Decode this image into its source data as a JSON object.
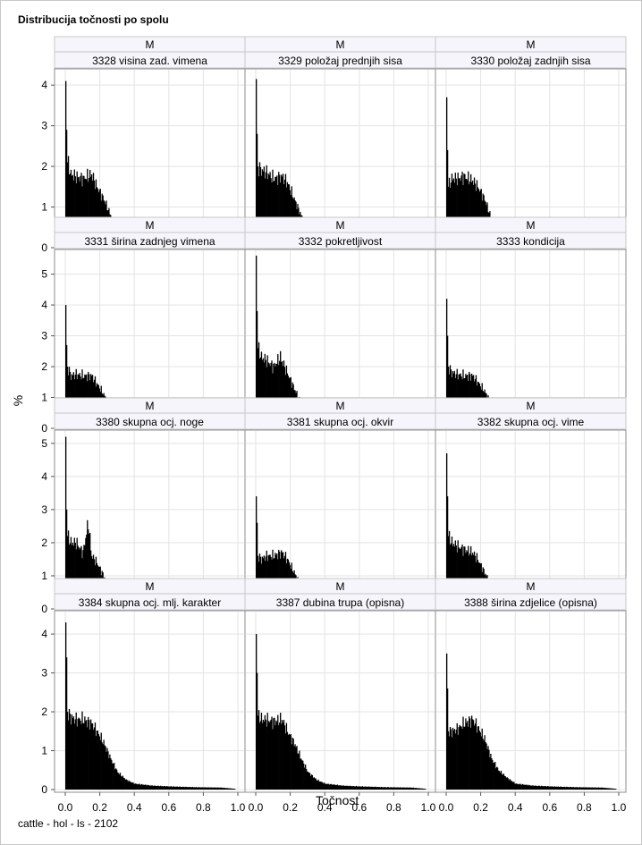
{
  "title": "Distribucija točnosti po spolu",
  "footnote": "cattle - hol - ls - 2102",
  "chart_data": {
    "type": "bar",
    "title": "Distribucija točnosti po spolu",
    "xlabel": "Točnost",
    "ylabel": "%",
    "xlim": [
      0,
      1
    ],
    "x_ticks": [
      "0.0",
      "0.2",
      "0.4",
      "0.6",
      "0.8",
      "1.0"
    ],
    "grid": true,
    "rows": [
      {
        "ylim": [
          0,
          4.4
        ],
        "y_ticks": [
          "0",
          "1",
          "2",
          "3",
          "4"
        ]
      },
      {
        "ylim": [
          0,
          5.8
        ],
        "y_ticks": [
          "0",
          "1",
          "2",
          "3",
          "4",
          "5"
        ]
      },
      {
        "ylim": [
          0,
          5.4
        ],
        "y_ticks": [
          "0",
          "1",
          "2",
          "3",
          "4",
          "5"
        ]
      },
      {
        "ylim": [
          0,
          4.6
        ],
        "y_ticks": [
          "0",
          "1",
          "2",
          "3",
          "4"
        ]
      }
    ],
    "panels": [
      {
        "sex": "M",
        "name": "3328 visina zad. vimena",
        "profile": [
          [
            0.0,
            4.1
          ],
          [
            0.005,
            2.9
          ],
          [
            0.01,
            2.1
          ],
          [
            0.03,
            1.8
          ],
          [
            0.06,
            1.75
          ],
          [
            0.1,
            1.7
          ],
          [
            0.15,
            1.8
          ],
          [
            0.18,
            1.5
          ],
          [
            0.22,
            1.2
          ],
          [
            0.26,
            0.8
          ],
          [
            0.3,
            0.4
          ],
          [
            0.35,
            0.2
          ],
          [
            0.4,
            0.12
          ],
          [
            0.5,
            0.08
          ],
          [
            0.6,
            0.06
          ],
          [
            0.75,
            0.05
          ],
          [
            0.9,
            0.04
          ],
          [
            0.98,
            0.02
          ]
        ]
      },
      {
        "sex": "M",
        "name": "3329 položaj prednjih sisa",
        "profile": [
          [
            0.0,
            4.15
          ],
          [
            0.005,
            2.8
          ],
          [
            0.01,
            2.0
          ],
          [
            0.03,
            1.9
          ],
          [
            0.06,
            1.85
          ],
          [
            0.1,
            1.7
          ],
          [
            0.15,
            1.75
          ],
          [
            0.18,
            1.6
          ],
          [
            0.22,
            1.2
          ],
          [
            0.26,
            0.8
          ],
          [
            0.3,
            0.45
          ],
          [
            0.35,
            0.25
          ],
          [
            0.4,
            0.15
          ],
          [
            0.5,
            0.1
          ],
          [
            0.6,
            0.08
          ],
          [
            0.75,
            0.05
          ],
          [
            0.9,
            0.03
          ],
          [
            0.93,
            0.01
          ]
        ]
      },
      {
        "sex": "M",
        "name": "3330 položaj zadnjih sisa",
        "profile": [
          [
            0.0,
            3.7
          ],
          [
            0.005,
            2.4
          ],
          [
            0.01,
            1.5
          ],
          [
            0.03,
            1.7
          ],
          [
            0.06,
            1.7
          ],
          [
            0.1,
            1.75
          ],
          [
            0.15,
            1.65
          ],
          [
            0.18,
            1.5
          ],
          [
            0.22,
            1.2
          ],
          [
            0.26,
            0.7
          ],
          [
            0.3,
            0.4
          ],
          [
            0.35,
            0.2
          ],
          [
            0.4,
            0.12
          ],
          [
            0.5,
            0.08
          ],
          [
            0.6,
            0.07
          ],
          [
            0.75,
            0.06
          ],
          [
            0.9,
            0.06
          ],
          [
            0.98,
            0.03
          ]
        ]
      },
      {
        "sex": "M",
        "name": "3331 širina zadnjeg vimena",
        "profile": [
          [
            0.0,
            4.0
          ],
          [
            0.005,
            2.7
          ],
          [
            0.01,
            2.0
          ],
          [
            0.03,
            1.7
          ],
          [
            0.06,
            1.75
          ],
          [
            0.1,
            1.7
          ],
          [
            0.15,
            1.7
          ],
          [
            0.18,
            1.45
          ],
          [
            0.22,
            1.1
          ],
          [
            0.26,
            0.7
          ],
          [
            0.3,
            0.35
          ],
          [
            0.35,
            0.2
          ],
          [
            0.4,
            0.12
          ],
          [
            0.5,
            0.08
          ],
          [
            0.6,
            0.07
          ],
          [
            0.75,
            0.06
          ],
          [
            0.9,
            0.05
          ],
          [
            0.98,
            0.02
          ]
        ]
      },
      {
        "sex": "M",
        "name": "3332 pokretljivost",
        "profile": [
          [
            0.0,
            5.6
          ],
          [
            0.005,
            3.8
          ],
          [
            0.01,
            2.6
          ],
          [
            0.03,
            2.3
          ],
          [
            0.06,
            2.2
          ],
          [
            0.1,
            2.0
          ],
          [
            0.14,
            2.3
          ],
          [
            0.18,
            1.8
          ],
          [
            0.22,
            1.3
          ],
          [
            0.26,
            0.8
          ],
          [
            0.3,
            0.45
          ],
          [
            0.35,
            0.25
          ],
          [
            0.4,
            0.12
          ],
          [
            0.5,
            0.08
          ],
          [
            0.6,
            0.07
          ],
          [
            0.75,
            0.05
          ],
          [
            0.9,
            0.04
          ],
          [
            0.98,
            0.02
          ]
        ]
      },
      {
        "sex": "M",
        "name": "3333 kondicija",
        "profile": [
          [
            0.0,
            4.2
          ],
          [
            0.005,
            3.0
          ],
          [
            0.01,
            2.0
          ],
          [
            0.03,
            1.8
          ],
          [
            0.06,
            1.75
          ],
          [
            0.1,
            1.7
          ],
          [
            0.15,
            1.7
          ],
          [
            0.18,
            1.5
          ],
          [
            0.22,
            1.2
          ],
          [
            0.26,
            0.8
          ],
          [
            0.3,
            0.45
          ],
          [
            0.35,
            0.25
          ],
          [
            0.4,
            0.15
          ],
          [
            0.5,
            0.1
          ],
          [
            0.6,
            0.08
          ],
          [
            0.75,
            0.06
          ],
          [
            0.9,
            0.05
          ],
          [
            0.98,
            0.02
          ]
        ]
      },
      {
        "sex": "M",
        "name": "3380 skupna ocj. noge",
        "profile": [
          [
            0.0,
            5.2
          ],
          [
            0.005,
            3.0
          ],
          [
            0.01,
            2.2
          ],
          [
            0.03,
            2.0
          ],
          [
            0.06,
            2.0
          ],
          [
            0.1,
            1.7
          ],
          [
            0.13,
            2.6
          ],
          [
            0.15,
            1.6
          ],
          [
            0.18,
            1.4
          ],
          [
            0.22,
            1.0
          ],
          [
            0.26,
            0.6
          ],
          [
            0.3,
            0.35
          ],
          [
            0.35,
            0.2
          ],
          [
            0.4,
            0.12
          ],
          [
            0.5,
            0.08
          ],
          [
            0.6,
            0.07
          ],
          [
            0.75,
            0.06
          ],
          [
            0.9,
            0.05
          ],
          [
            0.98,
            0.02
          ]
        ]
      },
      {
        "sex": "M",
        "name": "3381 skupna ocj. okvir",
        "profile": [
          [
            0.0,
            3.4
          ],
          [
            0.005,
            2.6
          ],
          [
            0.01,
            1.6
          ],
          [
            0.03,
            1.5
          ],
          [
            0.06,
            1.6
          ],
          [
            0.1,
            1.6
          ],
          [
            0.15,
            1.7
          ],
          [
            0.18,
            1.5
          ],
          [
            0.22,
            1.1
          ],
          [
            0.26,
            0.7
          ],
          [
            0.3,
            0.4
          ],
          [
            0.35,
            0.25
          ],
          [
            0.4,
            0.12
          ],
          [
            0.5,
            0.08
          ],
          [
            0.6,
            0.07
          ],
          [
            0.75,
            0.06
          ],
          [
            0.9,
            0.05
          ],
          [
            0.98,
            0.02
          ]
        ]
      },
      {
        "sex": "M",
        "name": "3382 skupna ocj. vime",
        "profile": [
          [
            0.0,
            4.7
          ],
          [
            0.005,
            3.4
          ],
          [
            0.01,
            2.2
          ],
          [
            0.03,
            2.0
          ],
          [
            0.06,
            1.9
          ],
          [
            0.1,
            1.8
          ],
          [
            0.15,
            1.7
          ],
          [
            0.18,
            1.5
          ],
          [
            0.22,
            1.1
          ],
          [
            0.26,
            0.7
          ],
          [
            0.3,
            0.4
          ],
          [
            0.35,
            0.2
          ],
          [
            0.4,
            0.12
          ],
          [
            0.5,
            0.08
          ],
          [
            0.6,
            0.07
          ],
          [
            0.75,
            0.06
          ],
          [
            0.9,
            0.05
          ],
          [
            0.98,
            0.02
          ]
        ]
      },
      {
        "sex": "M",
        "name": "3384 skupna ocj. mlj. karakter",
        "profile": [
          [
            0.0,
            4.3
          ],
          [
            0.005,
            3.4
          ],
          [
            0.01,
            2.0
          ],
          [
            0.03,
            1.85
          ],
          [
            0.06,
            1.8
          ],
          [
            0.1,
            1.8
          ],
          [
            0.15,
            1.7
          ],
          [
            0.18,
            1.5
          ],
          [
            0.22,
            1.2
          ],
          [
            0.26,
            0.8
          ],
          [
            0.3,
            0.45
          ],
          [
            0.35,
            0.25
          ],
          [
            0.4,
            0.15
          ],
          [
            0.5,
            0.1
          ],
          [
            0.6,
            0.08
          ],
          [
            0.75,
            0.06
          ],
          [
            0.9,
            0.05
          ],
          [
            0.98,
            0.02
          ]
        ]
      },
      {
        "sex": "M",
        "name": "3387 dubina trupa (opisna)",
        "profile": [
          [
            0.0,
            4.0
          ],
          [
            0.005,
            3.0
          ],
          [
            0.01,
            1.9
          ],
          [
            0.03,
            1.8
          ],
          [
            0.06,
            1.8
          ],
          [
            0.1,
            1.75
          ],
          [
            0.15,
            1.8
          ],
          [
            0.18,
            1.5
          ],
          [
            0.22,
            1.2
          ],
          [
            0.26,
            0.8
          ],
          [
            0.3,
            0.45
          ],
          [
            0.35,
            0.25
          ],
          [
            0.4,
            0.15
          ],
          [
            0.5,
            0.1
          ],
          [
            0.6,
            0.08
          ],
          [
            0.75,
            0.06
          ],
          [
            0.9,
            0.05
          ],
          [
            0.98,
            0.02
          ]
        ]
      },
      {
        "sex": "M",
        "name": "3388 širina zdjelice (opisna)",
        "profile": [
          [
            0.0,
            3.5
          ],
          [
            0.005,
            2.6
          ],
          [
            0.01,
            1.5
          ],
          [
            0.03,
            1.5
          ],
          [
            0.06,
            1.55
          ],
          [
            0.1,
            1.7
          ],
          [
            0.15,
            1.8
          ],
          [
            0.18,
            1.6
          ],
          [
            0.22,
            1.3
          ],
          [
            0.26,
            0.8
          ],
          [
            0.3,
            0.5
          ],
          [
            0.35,
            0.3
          ],
          [
            0.4,
            0.15
          ],
          [
            0.5,
            0.1
          ],
          [
            0.6,
            0.08
          ],
          [
            0.75,
            0.06
          ],
          [
            0.9,
            0.05
          ],
          [
            0.98,
            0.02
          ]
        ]
      }
    ]
  }
}
